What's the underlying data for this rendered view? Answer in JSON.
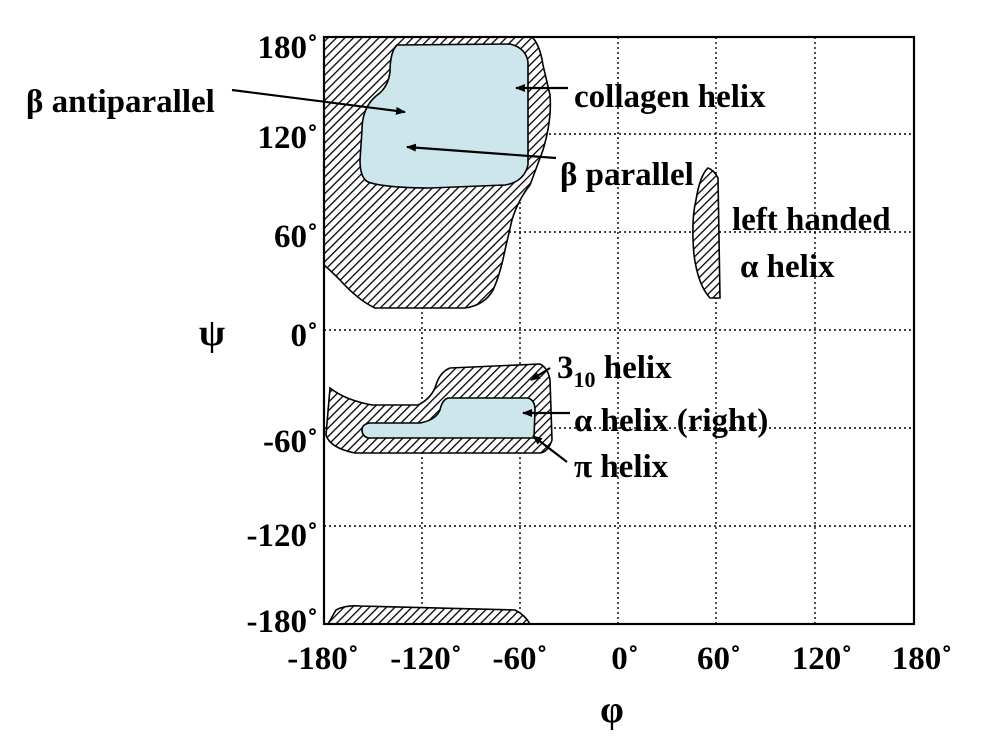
{
  "diagram": {
    "type": "ramachandran-plot",
    "x_axis": {
      "symbol": "φ",
      "ticks": [
        "-180˚",
        "-120˚",
        "-60˚",
        "0˚",
        "60˚",
        "120˚",
        "180˚"
      ]
    },
    "y_axis": {
      "symbol": "ψ",
      "ticks": [
        "180˚",
        "120˚",
        "60˚",
        "0˚",
        "-60˚",
        "-120˚",
        "-180˚"
      ]
    },
    "grid": "dotted",
    "allowed_region_fill": "hatched",
    "core_region_fill": "#cde6ec",
    "annotations": {
      "beta_antiparallel": "β antiparallel",
      "collagen_helix": "collagen helix",
      "beta_parallel": "β parallel",
      "left_handed_line1": "left handed",
      "left_handed_line2": "α helix",
      "helix_310_main": "3",
      "helix_310_sub": "10",
      "helix_310_suffix": " helix",
      "alpha_helix_right": "α helix (right)",
      "pi_helix": "π helix"
    }
  }
}
